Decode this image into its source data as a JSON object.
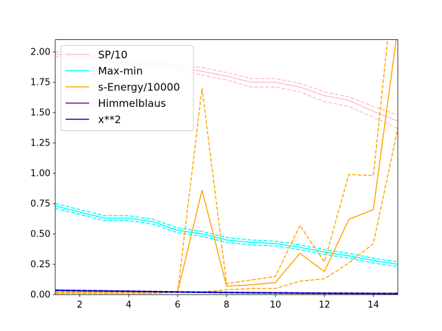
{
  "chart_data": {
    "type": "line",
    "xlim": [
      1,
      15
    ],
    "ylim": [
      0.0,
      2.1
    ],
    "x_ticks": [
      2,
      4,
      6,
      8,
      10,
      12,
      14
    ],
    "y_ticks": [
      0.0,
      0.25,
      0.5,
      0.75,
      1.0,
      1.25,
      1.5,
      1.75,
      2.0
    ],
    "x_tick_labels": [
      "2",
      "4",
      "6",
      "8",
      "10",
      "12",
      "14"
    ],
    "y_tick_labels": [
      "0.00",
      "0.25",
      "0.50",
      "0.75",
      "1.00",
      "1.25",
      "1.50",
      "1.75",
      "2.00"
    ],
    "grid": false,
    "legend_position": "upper-left",
    "x": [
      1,
      2,
      3,
      4,
      5,
      6,
      7,
      8,
      9,
      10,
      11,
      12,
      13,
      14,
      15
    ],
    "series": [
      {
        "name": "SP/10",
        "color": "#ffc0cb",
        "values": [
          1.98,
          1.96,
          1.94,
          1.92,
          1.9,
          1.87,
          1.84,
          1.8,
          1.75,
          1.75,
          1.71,
          1.64,
          1.6,
          1.51,
          1.43
        ],
        "upper": [
          2.0,
          1.98,
          1.96,
          1.94,
          1.92,
          1.89,
          1.87,
          1.83,
          1.78,
          1.78,
          1.74,
          1.67,
          1.63,
          1.55,
          1.48
        ],
        "lower": [
          1.96,
          1.94,
          1.92,
          1.9,
          1.88,
          1.85,
          1.81,
          1.77,
          1.71,
          1.71,
          1.67,
          1.59,
          1.55,
          1.46,
          1.37
        ]
      },
      {
        "name": "Max-min",
        "color": "#00ffff",
        "values": [
          0.73,
          0.68,
          0.63,
          0.63,
          0.6,
          0.53,
          0.5,
          0.45,
          0.43,
          0.42,
          0.39,
          0.35,
          0.32,
          0.28,
          0.25
        ],
        "upper": [
          0.75,
          0.7,
          0.65,
          0.65,
          0.62,
          0.55,
          0.52,
          0.47,
          0.45,
          0.44,
          0.41,
          0.37,
          0.34,
          0.3,
          0.27
        ],
        "lower": [
          0.71,
          0.66,
          0.61,
          0.61,
          0.58,
          0.51,
          0.48,
          0.43,
          0.41,
          0.4,
          0.37,
          0.33,
          0.3,
          0.26,
          0.23
        ]
      },
      {
        "name": "s-Energy/10000",
        "color": "#ffa500",
        "values": [
          0.02,
          0.02,
          0.02,
          0.02,
          0.02,
          0.02,
          0.86,
          0.07,
          0.08,
          0.1,
          0.34,
          0.19,
          0.62,
          0.7,
          2.2
        ],
        "upper": [
          0.02,
          0.02,
          0.02,
          0.02,
          0.02,
          0.02,
          1.7,
          0.09,
          0.12,
          0.15,
          0.57,
          0.27,
          0.99,
          0.98,
          2.9
        ],
        "lower": [
          0.01,
          0.01,
          0.01,
          0.01,
          0.01,
          0.02,
          0.02,
          0.04,
          0.05,
          0.05,
          0.11,
          0.13,
          0.26,
          0.42,
          1.37
        ]
      },
      {
        "name": "Himmelblaus",
        "color": "#800080",
        "values": [
          0.035,
          0.032,
          0.03,
          0.028,
          0.025,
          0.022,
          0.02,
          0.018,
          0.016,
          0.015,
          0.013,
          0.012,
          0.011,
          0.01,
          0.009
        ],
        "upper": [
          0.037,
          0.034,
          0.032,
          0.03,
          0.027,
          0.024,
          0.022,
          0.02,
          0.018,
          0.017,
          0.015,
          0.014,
          0.013,
          0.012,
          0.011
        ],
        "lower": [
          0.033,
          0.03,
          0.028,
          0.026,
          0.023,
          0.02,
          0.018,
          0.016,
          0.014,
          0.013,
          0.011,
          0.01,
          0.009,
          0.008,
          0.007
        ]
      },
      {
        "name": "x**2",
        "color": "#0000cd",
        "values": [
          0.036,
          0.033,
          0.03,
          0.027,
          0.024,
          0.021,
          0.019,
          0.017,
          0.015,
          0.014,
          0.012,
          0.011,
          0.01,
          0.009,
          0.008
        ],
        "upper": [
          0.038,
          0.035,
          0.032,
          0.029,
          0.026,
          0.023,
          0.021,
          0.019,
          0.017,
          0.016,
          0.014,
          0.013,
          0.012,
          0.011,
          0.01
        ],
        "lower": [
          0.034,
          0.031,
          0.028,
          0.025,
          0.022,
          0.019,
          0.017,
          0.015,
          0.013,
          0.012,
          0.01,
          0.009,
          0.008,
          0.007,
          0.006
        ]
      }
    ]
  }
}
